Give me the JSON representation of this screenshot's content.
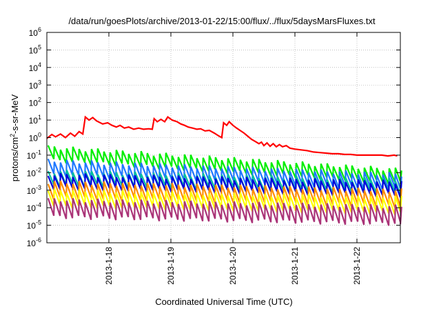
{
  "chart_data": {
    "type": "line",
    "title": "/data/run/goesPlots/archive/2013-01-22/15:00/flux/../flux/5daysMarsFluxes.txt",
    "xlabel": "Coordinated Universal Time (UTC)",
    "ylabel": {
      "prefix": "protons/cm",
      "sup": "2",
      "suffix": "-s-sr-MeV"
    },
    "xlim": [
      0.0,
      5.7
    ],
    "xticks": [
      {
        "value": 1.0,
        "label": "2013-1-18"
      },
      {
        "value": 2.0,
        "label": "2013-1-19"
      },
      {
        "value": 3.0,
        "label": "2013-1-20"
      },
      {
        "value": 4.0,
        "label": "2013-1-21"
      },
      {
        "value": 5.0,
        "label": "2013-1-22"
      }
    ],
    "x_origin_note": "x values are days after 2013-1-17 00:00 UTC",
    "ylim": [
      1e-06,
      1000000.0
    ],
    "yscale": "log",
    "yticks": [
      {
        "base": "10",
        "exp": "-6"
      },
      {
        "base": "10",
        "exp": "-5"
      },
      {
        "base": "10",
        "exp": "-4"
      },
      {
        "base": "10",
        "exp": "-3"
      },
      {
        "base": "10",
        "exp": "-2"
      },
      {
        "base": "10",
        "exp": "-1"
      },
      {
        "base": "10",
        "exp": "0"
      },
      {
        "base": "10",
        "exp": "1"
      },
      {
        "base": "10",
        "exp": "2"
      },
      {
        "base": "10",
        "exp": "3"
      },
      {
        "base": "10",
        "exp": "4"
      },
      {
        "base": "10",
        "exp": "5"
      },
      {
        "base": "10",
        "exp": "6"
      }
    ],
    "grid": true,
    "series": [
      {
        "color": "#ff0000",
        "points": [
          [
            0.0,
            0.9
          ],
          [
            0.08,
            1.5
          ],
          [
            0.14,
            1.1
          ],
          [
            0.22,
            1.6
          ],
          [
            0.3,
            1.0
          ],
          [
            0.38,
            1.8
          ],
          [
            0.45,
            1.2
          ],
          [
            0.52,
            2.2
          ],
          [
            0.58,
            1.6
          ],
          [
            0.62,
            15
          ],
          [
            0.68,
            10
          ],
          [
            0.74,
            14
          ],
          [
            0.8,
            9
          ],
          [
            0.9,
            6
          ],
          [
            0.98,
            7
          ],
          [
            1.05,
            5
          ],
          [
            1.12,
            4
          ],
          [
            1.18,
            5
          ],
          [
            1.25,
            3.5
          ],
          [
            1.32,
            4
          ],
          [
            1.4,
            3
          ],
          [
            1.48,
            3.5
          ],
          [
            1.56,
            3
          ],
          [
            1.64,
            3.2
          ],
          [
            1.7,
            3
          ],
          [
            1.73,
            12
          ],
          [
            1.78,
            8
          ],
          [
            1.84,
            11
          ],
          [
            1.9,
            8
          ],
          [
            1.95,
            15
          ],
          [
            2.02,
            10
          ],
          [
            2.1,
            8
          ],
          [
            2.16,
            6
          ],
          [
            2.22,
            5
          ],
          [
            2.28,
            4
          ],
          [
            2.35,
            3.5
          ],
          [
            2.42,
            3
          ],
          [
            2.48,
            3.2
          ],
          [
            2.55,
            2.4
          ],
          [
            2.62,
            2.6
          ],
          [
            2.7,
            1.8
          ],
          [
            2.78,
            1.2
          ],
          [
            2.82,
            1.0
          ],
          [
            2.85,
            7
          ],
          [
            2.9,
            5
          ],
          [
            2.94,
            8
          ],
          [
            3.0,
            5
          ],
          [
            3.06,
            3.5
          ],
          [
            3.12,
            2.5
          ],
          [
            3.18,
            1.8
          ],
          [
            3.24,
            1.2
          ],
          [
            3.3,
            0.8
          ],
          [
            3.36,
            0.6
          ],
          [
            3.42,
            0.45
          ],
          [
            3.46,
            0.55
          ],
          [
            3.5,
            0.35
          ],
          [
            3.55,
            0.5
          ],
          [
            3.6,
            0.32
          ],
          [
            3.65,
            0.45
          ],
          [
            3.7,
            0.3
          ],
          [
            3.75,
            0.4
          ],
          [
            3.8,
            0.3
          ],
          [
            3.86,
            0.35
          ],
          [
            3.92,
            0.25
          ],
          [
            4.0,
            0.22
          ],
          [
            4.1,
            0.2
          ],
          [
            4.2,
            0.18
          ],
          [
            4.3,
            0.15
          ],
          [
            4.4,
            0.14
          ],
          [
            4.5,
            0.13
          ],
          [
            4.6,
            0.12
          ],
          [
            4.7,
            0.12
          ],
          [
            4.8,
            0.11
          ],
          [
            4.9,
            0.11
          ],
          [
            5.0,
            0.1
          ],
          [
            5.1,
            0.1
          ],
          [
            5.2,
            0.1
          ],
          [
            5.3,
            0.1
          ],
          [
            5.4,
            0.1
          ],
          [
            5.5,
            0.09
          ],
          [
            5.6,
            0.1
          ],
          [
            5.65,
            0.09
          ]
        ]
      },
      {
        "color": "#00ee00",
        "start_peak": 0.3,
        "end_peak": 0.015,
        "dip": 6
      },
      {
        "color": "#1e78ff",
        "start_peak": 0.05,
        "end_peak": 0.008,
        "dip": 7
      },
      {
        "color": "#00bfa0",
        "start_peak": 0.012,
        "end_peak": 0.004,
        "dip": 6
      },
      {
        "color": "#0000dd",
        "start_peak": 0.008,
        "end_peak": 0.003,
        "dip": 6
      },
      {
        "color": "#ff8c00",
        "start_peak": 0.003,
        "end_peak": 0.001,
        "dip": 8
      },
      {
        "color": "#ffff00",
        "start_peak": 0.001,
        "end_peak": 0.0004,
        "dip": 8
      },
      {
        "color": "#aa3377",
        "start_peak": 0.0003,
        "end_peak": 0.00012,
        "dip": 10
      }
    ]
  }
}
